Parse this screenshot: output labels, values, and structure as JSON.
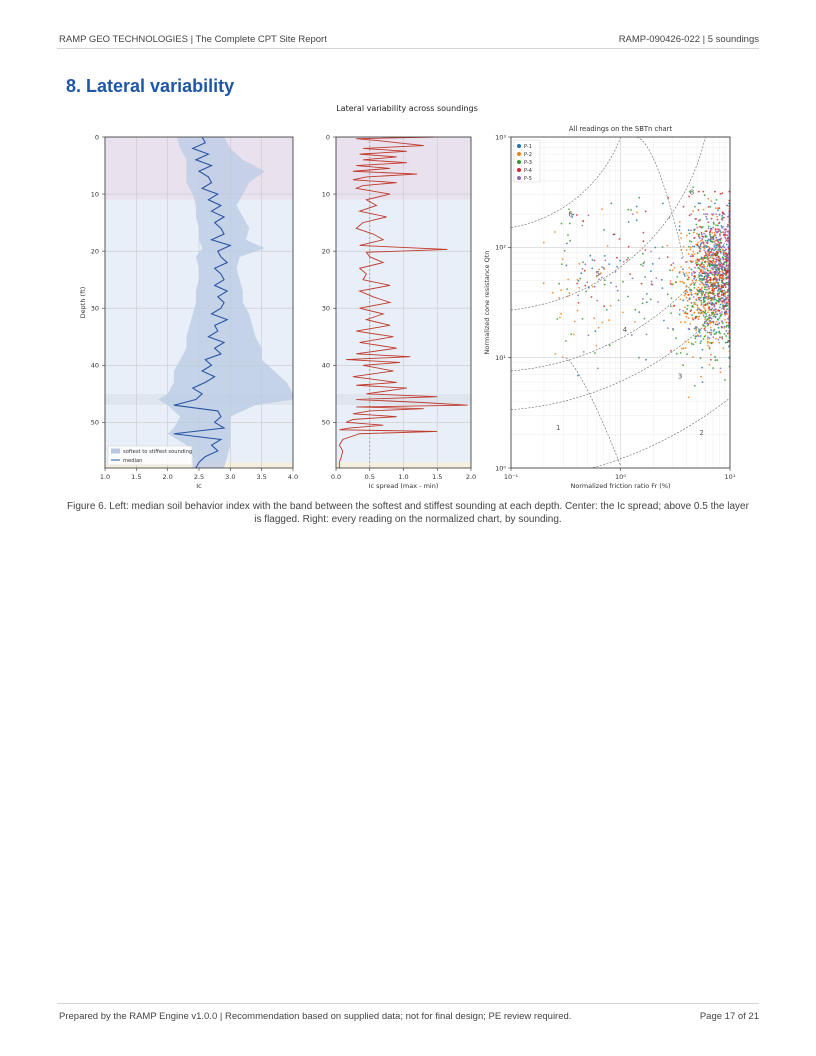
{
  "header": {
    "left": "RAMP GEO TECHNOLOGIES  |  The Complete CPT Site Report",
    "right": "RAMP-090426-022  |  5 soundings"
  },
  "section_title": "8. Lateral variability",
  "figure_title": "Lateral variability across soundings",
  "caption": "Figure 6. Left: median soil behavior index with the band between the softest and stiffest sounding at each depth. Center: the Ic spread; above 0.5 the layer is flagged. Right: every reading on the normalized chart, by sounding.",
  "footer": {
    "left": "Prepared by the RAMP Engine v1.0.0  |  Recommendation based on supplied data; not for final design; PE review required.",
    "right": "Page 17 of 21"
  },
  "chart_data": [
    {
      "type": "line",
      "xlabel": "Ic",
      "ylabel": "Depth (ft)",
      "xlim": [
        1.0,
        4.0
      ],
      "ylim": [
        58,
        0
      ],
      "x_ticks": [
        "1.0",
        "1.5",
        "2.0",
        "2.5",
        "3.0",
        "3.5",
        "4.0"
      ],
      "y_ticks": [
        "0",
        "10",
        "20",
        "30",
        "40",
        "50"
      ],
      "grid": true,
      "legend_position": "bottom-left",
      "layers": [
        {
          "top": 0,
          "bottom": 11,
          "color": "#e9e2ee"
        },
        {
          "top": 11,
          "bottom": 45,
          "color": "#e8eff8"
        },
        {
          "top": 45,
          "bottom": 47,
          "color": "#dfe5ef"
        },
        {
          "top": 47,
          "bottom": 57,
          "color": "#e8eff8"
        },
        {
          "top": 57,
          "bottom": 58,
          "color": "#f6efe0"
        }
      ],
      "band": {
        "name": "softest to stiffest sounding",
        "color": "#b9c9e4",
        "depth": [
          0,
          2,
          4,
          6,
          8,
          10,
          12,
          14,
          16,
          18,
          19.5,
          21,
          23,
          25,
          27,
          29,
          31,
          33,
          35,
          37,
          39,
          41,
          43,
          45,
          46,
          47,
          49,
          51,
          52,
          54,
          56,
          58
        ],
        "low": [
          2.15,
          2.2,
          2.3,
          2.3,
          2.3,
          2.4,
          2.45,
          2.45,
          2.5,
          2.5,
          2.55,
          2.45,
          2.5,
          2.5,
          2.45,
          2.45,
          2.4,
          2.35,
          2.3,
          2.3,
          2.2,
          2.1,
          2.1,
          2.0,
          1.85,
          2.0,
          2.2,
          2.1,
          2.0,
          2.3,
          2.4,
          2.4
        ],
        "high": [
          2.9,
          3.0,
          3.2,
          3.55,
          3.3,
          3.2,
          3.1,
          3.2,
          3.3,
          3.25,
          3.55,
          3.15,
          3.1,
          3.15,
          3.2,
          3.2,
          3.3,
          3.35,
          3.4,
          3.5,
          3.5,
          3.7,
          3.9,
          4.0,
          4.0,
          3.4,
          3.0,
          3.0,
          3.0,
          3.0,
          2.95,
          2.9
        ]
      },
      "series": [
        {
          "name": "median",
          "color": "#2a55a3",
          "depth": [
            0,
            1,
            2,
            3,
            4,
            5,
            6,
            7,
            8,
            9,
            10,
            11,
            12,
            13,
            14,
            15,
            16,
            17,
            18,
            19,
            20,
            21,
            22,
            23,
            24,
            25,
            26,
            27,
            28,
            29,
            30,
            31,
            32,
            33,
            34,
            35,
            36,
            37,
            38,
            39,
            40,
            41,
            42,
            43,
            44,
            45,
            46,
            47,
            48,
            49,
            50,
            51,
            52,
            53,
            54,
            55,
            56,
            57,
            58
          ],
          "ic": [
            2.55,
            2.6,
            2.4,
            2.65,
            2.45,
            2.7,
            2.5,
            2.65,
            2.7,
            2.55,
            2.8,
            2.65,
            2.85,
            2.7,
            2.9,
            2.75,
            2.85,
            2.9,
            2.7,
            3.0,
            2.8,
            2.85,
            2.95,
            2.75,
            2.85,
            2.9,
            2.75,
            2.95,
            2.8,
            2.9,
            2.85,
            2.7,
            2.95,
            2.75,
            2.8,
            2.65,
            2.9,
            2.75,
            2.85,
            2.6,
            2.7,
            2.55,
            2.75,
            2.6,
            2.4,
            2.55,
            2.45,
            2.1,
            2.8,
            2.85,
            2.75,
            2.9,
            2.1,
            2.85,
            2.7,
            2.8,
            2.6,
            2.5,
            2.45
          ]
        }
      ]
    },
    {
      "type": "line",
      "xlabel": "Ic spread (max - min)",
      "ylabel": "",
      "xlim": [
        0.0,
        2.0
      ],
      "ylim": [
        58,
        0
      ],
      "x_ticks": [
        "0.0",
        "0.5",
        "1.0",
        "1.5",
        "2.0"
      ],
      "y_ticks": [
        "0",
        "10",
        "20",
        "30",
        "40",
        "50"
      ],
      "threshold": 0.5,
      "grid": true,
      "layers": [
        {
          "top": 0,
          "bottom": 11,
          "color": "#e9e2ee"
        },
        {
          "top": 11,
          "bottom": 45,
          "color": "#e8eff8"
        },
        {
          "top": 45,
          "bottom": 47,
          "color": "#dfe5ef"
        },
        {
          "top": 47,
          "bottom": 57,
          "color": "#e8eff8"
        },
        {
          "top": 57,
          "bottom": 58,
          "color": "#f6efe0"
        }
      ],
      "series": [
        {
          "color": "#c0392b",
          "depth": [
            0,
            0.3,
            0.6,
            1,
            1.5,
            2,
            2.5,
            3,
            3.5,
            4,
            4.5,
            5,
            5.5,
            6,
            6.5,
            7,
            7.5,
            8,
            8.5,
            9,
            10,
            11,
            12,
            13,
            14,
            15,
            16,
            17,
            18,
            19,
            19.7,
            20.2,
            21,
            22,
            23,
            24,
            25,
            26,
            27,
            28,
            29,
            30,
            31,
            32,
            33,
            34,
            35,
            36,
            37,
            38,
            38.5,
            39,
            39.5,
            40,
            41,
            42,
            43,
            43.5,
            44,
            45,
            45.5,
            46,
            46.5,
            47,
            47.3,
            47.6,
            48,
            48.5,
            49,
            49.5,
            50,
            50.5,
            51,
            51.3,
            51.6,
            52,
            53,
            54,
            55,
            56,
            57,
            58
          ],
          "spread": [
            1.45,
            0.3,
            0.6,
            0.9,
            1.3,
            0.4,
            1.05,
            0.35,
            0.9,
            0.4,
            1.05,
            0.3,
            0.8,
            0.25,
            1.2,
            0.45,
            0.25,
            0.9,
            0.4,
            0.3,
            0.8,
            0.45,
            0.6,
            0.35,
            0.75,
            0.4,
            0.3,
            0.55,
            0.7,
            0.35,
            1.65,
            0.45,
            0.5,
            0.7,
            0.35,
            0.45,
            0.4,
            0.8,
            0.35,
            0.55,
            0.8,
            0.35,
            0.7,
            0.45,
            0.8,
            0.3,
            0.85,
            0.35,
            0.9,
            0.3,
            1.1,
            0.15,
            0.95,
            0.4,
            0.85,
            0.25,
            0.9,
            0.3,
            1.05,
            0.45,
            1.5,
            0.3,
            1.25,
            1.95,
            0.3,
            1.3,
            0.5,
            0.25,
            0.9,
            0.25,
            0.15,
            0.7,
            0.2,
            0.05,
            1.5,
            0.35,
            0.1,
            0.05,
            0.1,
            0.08,
            0.05,
            0.05
          ]
        }
      ]
    },
    {
      "type": "scatter",
      "title": "All readings on the SBTn chart",
      "xlabel": "Normalized friction ratio Fr (%)",
      "ylabel": "Normalized cone resistance Qtn",
      "xscale": "log",
      "yscale": "log",
      "xlim": [
        0.1,
        10
      ],
      "ylim": [
        1,
        1000
      ],
      "x_ticks": [
        "10⁻¹",
        "10⁰",
        "10¹"
      ],
      "y_ticks": [
        "10⁰",
        "10¹",
        "10²",
        "10³"
      ],
      "grid": true,
      "legend_position": "top-left",
      "zone_labels": [
        {
          "label": "1",
          "fr": 0.27,
          "qtn": 2.2
        },
        {
          "label": "2",
          "fr": 5.5,
          "qtn": 2.0
        },
        {
          "label": "3",
          "fr": 3.5,
          "qtn": 6.5
        },
        {
          "label": "4",
          "fr": 1.1,
          "qtn": 17
        },
        {
          "label": "5",
          "fr": 0.62,
          "qtn": 55
        },
        {
          "label": "6",
          "fr": 0.35,
          "qtn": 190
        },
        {
          "label": "8",
          "fr": 4.5,
          "qtn": 300
        }
      ],
      "series": [
        {
          "name": "P-1",
          "color": "#1f77b4",
          "fr_range": [
            2.5,
            10
          ],
          "qtn_range": [
            6,
            250
          ]
        },
        {
          "name": "P-2",
          "color": "#ff7f0e",
          "fr_range": [
            1.5,
            10
          ],
          "qtn_range": [
            3,
            300
          ]
        },
        {
          "name": "P-3",
          "color": "#2ca02c",
          "fr_range": [
            2.0,
            10
          ],
          "qtn_range": [
            2.5,
            350
          ]
        },
        {
          "name": "P-4",
          "color": "#d62728",
          "fr_range": [
            3.0,
            10
          ],
          "qtn_range": [
            6,
            320
          ]
        },
        {
          "name": "P-5",
          "color": "#9467bd",
          "fr_range": [
            3.0,
            10
          ],
          "qtn_range": [
            8,
            200
          ]
        }
      ]
    }
  ]
}
